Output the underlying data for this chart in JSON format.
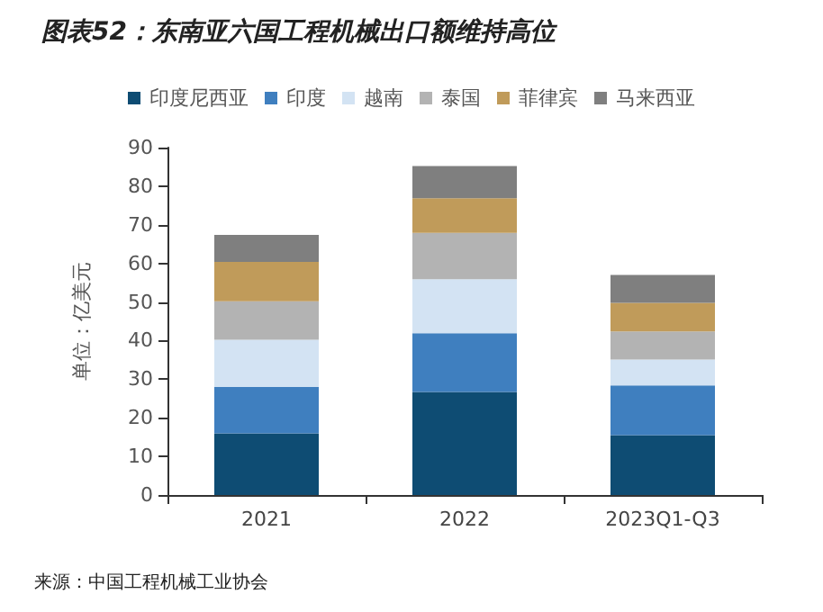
{
  "chart_data": {
    "type": "bar",
    "title": "图表52：东南亚六国工程机械出口额维持高位",
    "ylabel": "单位：亿美元",
    "annotations": [
      "来源：中国工程机械工业协会"
    ],
    "categories": [
      "2021",
      "2022",
      "2023Q1-Q3"
    ],
    "stacked": true,
    "series": [
      {
        "name": "印度尼西亚",
        "color": "#0e4c73",
        "values": [
          16,
          26.7,
          15.5
        ]
      },
      {
        "name": "印度",
        "color": "#3f7fbf",
        "values": [
          12,
          15.2,
          12.9
        ]
      },
      {
        "name": "越南",
        "color": "#d3e3f3",
        "values": [
          12.2,
          14,
          6.7
        ]
      },
      {
        "name": "泰国",
        "color": "#b3b3b3",
        "values": [
          10,
          12,
          7.3
        ]
      },
      {
        "name": "菲律宾",
        "color": "#c09b5a",
        "values": [
          10.2,
          9,
          7.4
        ]
      },
      {
        "name": "马来西亚",
        "color": "#7f7f7f",
        "values": [
          7,
          8.3,
          7.2
        ]
      }
    ],
    "ylim": [
      0,
      90
    ],
    "yticks": [
      0,
      10,
      20,
      30,
      40,
      50,
      60,
      70,
      80,
      90
    ],
    "grid": false,
    "legend": "top"
  }
}
